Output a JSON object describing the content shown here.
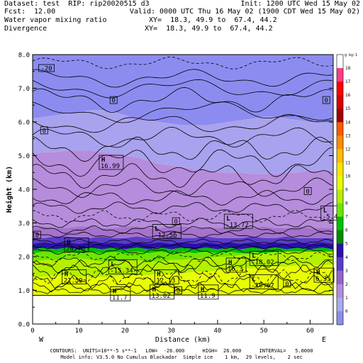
{
  "header": {
    "dataset_line": "Dataset: test  RIP: rip20020515 d3",
    "init_line": "Init: 1200 UTC Wed 15 May 02",
    "fcst_label": "Fcst:",
    "fcst_value": "12.00",
    "valid_line": "Valid: 0000 UTC Thu 16 May 02 (1900 CDT Wed 15 May 02)",
    "field1": "Water vapor mixing ratio",
    "xy1": "XY=  18.3, 49.9 to  67.4, 44.2",
    "field2": "Divergence",
    "xy2": "XY=  18.3, 49.9 to  67.4, 44.2"
  },
  "footer": {
    "contours": "CONTOURS:  UNITS=10**-5 s**-1   LOW=  -26.000      HIGH=  26.000      INTERVAL=   5.0000",
    "model_info": "Model info: V3.5.0 No Cumulus Blackadar  Simple ice    1 km,  29 levels,    2 sec"
  },
  "chart_data": {
    "type": "heatmap",
    "xlabel": "Distance (km)",
    "ylabel": "Height (km)",
    "xlim": [
      0,
      65
    ],
    "ylim": [
      0,
      8
    ],
    "x_ticks": [
      "0",
      "10",
      "20",
      "30",
      "40",
      "50",
      "60"
    ],
    "y_ticks": [
      "0.0",
      "1.0",
      "2.0",
      "3.0",
      "4.0",
      "5.0",
      "6.0",
      "7.0",
      "8.0"
    ],
    "left_end_label": "W",
    "right_end_label": "E",
    "colorbar": {
      "unit": "g kg-1",
      "levels": [
        "19",
        "18",
        "17",
        "16",
        "15",
        "14",
        "13",
        "12",
        "11",
        "10",
        "9",
        "8",
        "7",
        "6",
        "5",
        "4",
        "3",
        "2",
        "1",
        "0"
      ],
      "colors": [
        "#ffffff",
        "#ff3c8c",
        "#ff0000",
        "#d80000",
        "#a00000",
        "#ff5a00",
        "#ff8c00",
        "#ffbe00",
        "#ffe600",
        "#e8ff00",
        "#b4f000",
        "#6ee600",
        "#00c000",
        "#008c00",
        "#2a10a8",
        "#5a3cc8",
        "#9664c8",
        "#b48cdc",
        "#aaaaf0",
        "#8c8cf0"
      ]
    },
    "bands": [
      {
        "name": "0",
        "color": "#8c8cf0"
      },
      {
        "name": "1",
        "color": "#a9a2ee"
      },
      {
        "name": "2",
        "color": "#b68cdc"
      },
      {
        "name": "3",
        "color": "#a473cc"
      },
      {
        "name": "4",
        "color": "#5a3cc8"
      },
      {
        "name": "5",
        "color": "#2a10a8"
      },
      {
        "name": "7",
        "color": "#00c000"
      },
      {
        "name": "8",
        "color": "#6ee600"
      },
      {
        "name": "9",
        "color": "#b4f000"
      },
      {
        "name": "10",
        "color": "#e8ff00"
      }
    ],
    "labels": [
      {
        "kind": "",
        "text": "-20",
        "x": 3,
        "y": 7.6
      },
      {
        "kind": "",
        "text": "0",
        "x": 17.5,
        "y": 6.65
      },
      {
        "kind": "",
        "text": "0",
        "x": 2.5,
        "y": 5.75
      },
      {
        "kind": "",
        "text": "0",
        "x": 63.5,
        "y": 6.65
      },
      {
        "kind": "H",
        "text": "16.99",
        "x": 17,
        "y": 4.8
      },
      {
        "kind": "",
        "text": "0",
        "x": 59.5,
        "y": 3.95
      },
      {
        "kind": "L",
        "text": "-5.4",
        "x": 64.5,
        "y": 3.3
      },
      {
        "kind": "L",
        "text": "-13.72",
        "x": 44.5,
        "y": 3.05
      },
      {
        "kind": "",
        "text": "0",
        "x": 31,
        "y": 3.05
      },
      {
        "kind": "L",
        "text": "-12.56",
        "x": 29,
        "y": 2.75
      },
      {
        "kind": "",
        "text": "0",
        "x": 1,
        "y": 2.65
      },
      {
        "kind": "H",
        "text": "20.76",
        "x": 9.5,
        "y": 2.35
      },
      {
        "kind": "L",
        "text": "-15.34",
        "x": 19.5,
        "y": 1.7
      },
      {
        "kind": "H",
        "text": "16.3",
        "x": 44,
        "y": 1.75
      },
      {
        "kind": "L",
        "text": "-18.02",
        "x": 50,
        "y": 1.95
      },
      {
        "kind": "H",
        "text": "21.59",
        "x": 9,
        "y": 1.4
      },
      {
        "kind": "H",
        "text": "12.13",
        "x": 29,
        "y": 1.4
      },
      {
        "kind": "H",
        "text": "6.35",
        "x": 63,
        "y": 1.45
      },
      {
        "kind": "L",
        "text": "-10.67",
        "x": 50,
        "y": 1.25
      },
      {
        "kind": "",
        "text": "0",
        "x": 55,
        "y": 1.2
      },
      {
        "kind": "H",
        "text": "11.7",
        "x": 19,
        "y": 0.9
      },
      {
        "kind": "H",
        "text": "13.02",
        "x": 28,
        "y": 0.95
      },
      {
        "kind": "",
        "text": "0",
        "x": 31.5,
        "y": 1.0
      },
      {
        "kind": "H",
        "text": "11.9",
        "x": 38,
        "y": 0.95
      }
    ]
  }
}
